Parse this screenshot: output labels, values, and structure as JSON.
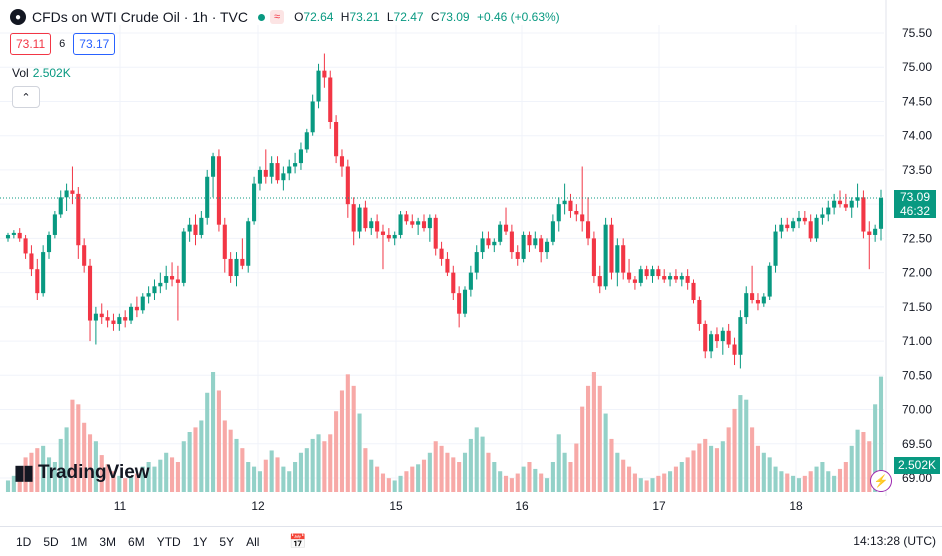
{
  "legend": {
    "symbol_icon": "oil-drop-icon",
    "title": "CFDs on WTI Crude Oil · 1h · TVC",
    "status_icon": "wave-icon",
    "status_glyph": "≈",
    "o_label": "O",
    "o_value": "72.64",
    "h_label": "H",
    "h_value": "73.21",
    "l_label": "L",
    "l_value": "72.47",
    "c_label": "C",
    "c_value": "73.09",
    "change": "+0.46 (+0.63%)"
  },
  "trade": {
    "sell": "73.11",
    "spread": "6",
    "buy": "73.17"
  },
  "volume": {
    "label": "Vol",
    "value": "2.502K"
  },
  "price_tag": {
    "price": "73.09",
    "countdown": "46:32"
  },
  "volume_tag": "2.502K",
  "logo_text": "TradingView",
  "bottom_bar": {
    "ranges": [
      "1D",
      "5D",
      "1M",
      "3M",
      "6M",
      "YTD",
      "1Y",
      "5Y",
      "All"
    ],
    "clock": "14:13:28 (UTC)"
  },
  "colors": {
    "up": "#089981",
    "down": "#f23645",
    "vol_up": "#93d1c8",
    "vol_down": "#f7a9a7"
  },
  "chart_data": {
    "type": "candlestick",
    "title": "CFDs on WTI Crude Oil · 1h · TVC",
    "y_ticks": [
      "75.50",
      "75.00",
      "74.50",
      "74.00",
      "73.50",
      "73.00",
      "72.50",
      "72.00",
      "71.50",
      "71.00",
      "70.50",
      "70.00",
      "69.50",
      "69.00"
    ],
    "x_ticks": [
      "11",
      "12",
      "15",
      "16",
      "17",
      "18"
    ],
    "ylim": [
      68.94,
      75.66
    ],
    "last_price": 73.09,
    "candles": [
      {
        "o": 72.5,
        "h": 72.58,
        "l": 72.45,
        "c": 72.55,
        "v": 0.25
      },
      {
        "o": 72.55,
        "h": 72.62,
        "l": 72.5,
        "c": 72.58,
        "v": 0.35
      },
      {
        "o": 72.58,
        "h": 72.65,
        "l": 72.45,
        "c": 72.5,
        "v": 0.45
      },
      {
        "o": 72.5,
        "h": 72.55,
        "l": 72.2,
        "c": 72.28,
        "v": 0.75
      },
      {
        "o": 72.28,
        "h": 72.4,
        "l": 71.95,
        "c": 72.05,
        "v": 0.85
      },
      {
        "o": 72.05,
        "h": 72.2,
        "l": 71.6,
        "c": 71.7,
        "v": 0.95
      },
      {
        "o": 71.7,
        "h": 72.4,
        "l": 71.65,
        "c": 72.3,
        "v": 1.0
      },
      {
        "o": 72.3,
        "h": 72.6,
        "l": 72.2,
        "c": 72.55,
        "v": 0.75
      },
      {
        "o": 72.55,
        "h": 72.9,
        "l": 72.5,
        "c": 72.85,
        "v": 0.65
      },
      {
        "o": 72.85,
        "h": 73.2,
        "l": 72.8,
        "c": 73.1,
        "v": 1.15
      },
      {
        "o": 73.1,
        "h": 73.3,
        "l": 72.9,
        "c": 73.2,
        "v": 1.4
      },
      {
        "o": 73.2,
        "h": 73.55,
        "l": 73.0,
        "c": 73.15,
        "v": 2.0
      },
      {
        "o": 73.15,
        "h": 73.25,
        "l": 72.2,
        "c": 72.4,
        "v": 1.9
      },
      {
        "o": 72.4,
        "h": 72.5,
        "l": 72.0,
        "c": 72.1,
        "v": 1.5
      },
      {
        "o": 72.1,
        "h": 72.2,
        "l": 71.0,
        "c": 71.3,
        "v": 1.25
      },
      {
        "o": 71.3,
        "h": 71.5,
        "l": 70.95,
        "c": 71.4,
        "v": 1.1
      },
      {
        "o": 71.4,
        "h": 71.55,
        "l": 71.25,
        "c": 71.35,
        "v": 0.8
      },
      {
        "o": 71.35,
        "h": 71.45,
        "l": 71.2,
        "c": 71.3,
        "v": 0.6
      },
      {
        "o": 71.3,
        "h": 71.4,
        "l": 71.15,
        "c": 71.25,
        "v": 0.45
      },
      {
        "o": 71.25,
        "h": 71.4,
        "l": 71.15,
        "c": 71.35,
        "v": 0.35
      },
      {
        "o": 71.35,
        "h": 71.45,
        "l": 71.2,
        "c": 71.3,
        "v": 0.3
      },
      {
        "o": 71.3,
        "h": 71.55,
        "l": 71.25,
        "c": 71.5,
        "v": 0.35
      },
      {
        "o": 71.5,
        "h": 71.65,
        "l": 71.35,
        "c": 71.45,
        "v": 0.4
      },
      {
        "o": 71.45,
        "h": 71.7,
        "l": 71.4,
        "c": 71.65,
        "v": 0.55
      },
      {
        "o": 71.65,
        "h": 71.8,
        "l": 71.55,
        "c": 71.7,
        "v": 0.65
      },
      {
        "o": 71.7,
        "h": 71.9,
        "l": 71.6,
        "c": 71.8,
        "v": 0.55
      },
      {
        "o": 71.8,
        "h": 72.0,
        "l": 71.7,
        "c": 71.85,
        "v": 0.7
      },
      {
        "o": 71.85,
        "h": 72.1,
        "l": 71.75,
        "c": 71.95,
        "v": 0.85
      },
      {
        "o": 71.95,
        "h": 72.15,
        "l": 71.8,
        "c": 71.9,
        "v": 0.75
      },
      {
        "o": 71.9,
        "h": 72.1,
        "l": 71.3,
        "c": 71.85,
        "v": 0.65
      },
      {
        "o": 71.85,
        "h": 72.65,
        "l": 71.8,
        "c": 72.6,
        "v": 1.1
      },
      {
        "o": 72.6,
        "h": 72.8,
        "l": 72.45,
        "c": 72.7,
        "v": 1.3
      },
      {
        "o": 72.7,
        "h": 72.85,
        "l": 72.4,
        "c": 72.55,
        "v": 1.4
      },
      {
        "o": 72.55,
        "h": 72.9,
        "l": 72.5,
        "c": 72.8,
        "v": 1.55
      },
      {
        "o": 72.8,
        "h": 73.5,
        "l": 72.7,
        "c": 73.4,
        "v": 2.15
      },
      {
        "o": 73.4,
        "h": 73.75,
        "l": 73.1,
        "c": 73.7,
        "v": 2.6
      },
      {
        "o": 73.7,
        "h": 73.8,
        "l": 72.6,
        "c": 72.7,
        "v": 2.2
      },
      {
        "o": 72.7,
        "h": 72.8,
        "l": 72.0,
        "c": 72.2,
        "v": 1.55
      },
      {
        "o": 72.2,
        "h": 72.3,
        "l": 71.85,
        "c": 71.95,
        "v": 1.35
      },
      {
        "o": 71.95,
        "h": 72.3,
        "l": 71.8,
        "c": 72.2,
        "v": 1.15
      },
      {
        "o": 72.2,
        "h": 72.5,
        "l": 72.05,
        "c": 72.1,
        "v": 0.95
      },
      {
        "o": 72.1,
        "h": 72.8,
        "l": 72.0,
        "c": 72.75,
        "v": 0.65
      },
      {
        "o": 72.75,
        "h": 73.4,
        "l": 72.7,
        "c": 73.3,
        "v": 0.55
      },
      {
        "o": 73.3,
        "h": 73.55,
        "l": 73.2,
        "c": 73.5,
        "v": 0.45
      },
      {
        "o": 73.5,
        "h": 73.8,
        "l": 73.3,
        "c": 73.4,
        "v": 0.7
      },
      {
        "o": 73.4,
        "h": 73.7,
        "l": 73.3,
        "c": 73.6,
        "v": 0.9
      },
      {
        "o": 73.6,
        "h": 73.7,
        "l": 73.3,
        "c": 73.35,
        "v": 0.75
      },
      {
        "o": 73.35,
        "h": 73.55,
        "l": 73.2,
        "c": 73.45,
        "v": 0.55
      },
      {
        "o": 73.45,
        "h": 73.65,
        "l": 73.35,
        "c": 73.55,
        "v": 0.45
      },
      {
        "o": 73.55,
        "h": 73.75,
        "l": 73.45,
        "c": 73.6,
        "v": 0.65
      },
      {
        "o": 73.6,
        "h": 73.9,
        "l": 73.5,
        "c": 73.8,
        "v": 0.85
      },
      {
        "o": 73.8,
        "h": 74.1,
        "l": 73.75,
        "c": 74.05,
        "v": 0.95
      },
      {
        "o": 74.05,
        "h": 74.6,
        "l": 74.0,
        "c": 74.5,
        "v": 1.15
      },
      {
        "o": 74.5,
        "h": 75.05,
        "l": 74.4,
        "c": 74.95,
        "v": 1.25
      },
      {
        "o": 74.95,
        "h": 75.2,
        "l": 74.7,
        "c": 74.85,
        "v": 1.1
      },
      {
        "o": 74.85,
        "h": 74.95,
        "l": 74.1,
        "c": 74.2,
        "v": 1.25
      },
      {
        "o": 74.2,
        "h": 74.3,
        "l": 73.6,
        "c": 73.7,
        "v": 1.75
      },
      {
        "o": 73.7,
        "h": 73.8,
        "l": 73.4,
        "c": 73.55,
        "v": 2.2
      },
      {
        "o": 73.55,
        "h": 73.65,
        "l": 72.8,
        "c": 73.0,
        "v": 2.55
      },
      {
        "o": 73.0,
        "h": 73.1,
        "l": 72.4,
        "c": 72.6,
        "v": 2.3
      },
      {
        "o": 72.6,
        "h": 73.0,
        "l": 72.5,
        "c": 72.95,
        "v": 1.7
      },
      {
        "o": 72.95,
        "h": 73.05,
        "l": 72.6,
        "c": 72.65,
        "v": 0.95
      },
      {
        "o": 72.65,
        "h": 72.8,
        "l": 72.55,
        "c": 72.75,
        "v": 0.7
      },
      {
        "o": 72.75,
        "h": 72.85,
        "l": 72.5,
        "c": 72.6,
        "v": 0.55
      },
      {
        "o": 72.6,
        "h": 72.7,
        "l": 72.05,
        "c": 72.55,
        "v": 0.4
      },
      {
        "o": 72.55,
        "h": 72.65,
        "l": 72.45,
        "c": 72.5,
        "v": 0.3
      },
      {
        "o": 72.5,
        "h": 72.6,
        "l": 72.4,
        "c": 72.55,
        "v": 0.25
      },
      {
        "o": 72.55,
        "h": 72.9,
        "l": 72.5,
        "c": 72.85,
        "v": 0.35
      },
      {
        "o": 72.85,
        "h": 72.9,
        "l": 72.7,
        "c": 72.75,
        "v": 0.45
      },
      {
        "o": 72.75,
        "h": 72.85,
        "l": 72.65,
        "c": 72.7,
        "v": 0.55
      },
      {
        "o": 72.7,
        "h": 72.8,
        "l": 72.55,
        "c": 72.75,
        "v": 0.6
      },
      {
        "o": 72.75,
        "h": 72.85,
        "l": 72.6,
        "c": 72.65,
        "v": 0.7
      },
      {
        "o": 72.65,
        "h": 72.85,
        "l": 72.45,
        "c": 72.8,
        "v": 0.85
      },
      {
        "o": 72.8,
        "h": 72.85,
        "l": 72.25,
        "c": 72.35,
        "v": 1.1
      },
      {
        "o": 72.35,
        "h": 72.45,
        "l": 72.1,
        "c": 72.2,
        "v": 1.0
      },
      {
        "o": 72.2,
        "h": 72.3,
        "l": 71.95,
        "c": 72.0,
        "v": 0.85
      },
      {
        "o": 72.0,
        "h": 72.1,
        "l": 71.6,
        "c": 71.7,
        "v": 0.75
      },
      {
        "o": 71.7,
        "h": 71.8,
        "l": 71.2,
        "c": 71.4,
        "v": 0.65
      },
      {
        "o": 71.4,
        "h": 71.8,
        "l": 71.35,
        "c": 71.75,
        "v": 0.85
      },
      {
        "o": 71.75,
        "h": 72.1,
        "l": 71.65,
        "c": 72.0,
        "v": 1.15
      },
      {
        "o": 72.0,
        "h": 72.4,
        "l": 71.9,
        "c": 72.3,
        "v": 1.4
      },
      {
        "o": 72.3,
        "h": 72.6,
        "l": 72.2,
        "c": 72.5,
        "v": 1.2
      },
      {
        "o": 72.5,
        "h": 72.6,
        "l": 72.35,
        "c": 72.4,
        "v": 0.85
      },
      {
        "o": 72.4,
        "h": 72.5,
        "l": 72.3,
        "c": 72.45,
        "v": 0.65
      },
      {
        "o": 72.45,
        "h": 72.75,
        "l": 72.4,
        "c": 72.7,
        "v": 0.45
      },
      {
        "o": 72.7,
        "h": 72.95,
        "l": 72.55,
        "c": 72.6,
        "v": 0.35
      },
      {
        "o": 72.6,
        "h": 72.7,
        "l": 72.2,
        "c": 72.3,
        "v": 0.3
      },
      {
        "o": 72.3,
        "h": 72.4,
        "l": 72.1,
        "c": 72.2,
        "v": 0.4
      },
      {
        "o": 72.2,
        "h": 72.6,
        "l": 72.15,
        "c": 72.55,
        "v": 0.55
      },
      {
        "o": 72.55,
        "h": 72.6,
        "l": 72.3,
        "c": 72.4,
        "v": 0.65
      },
      {
        "o": 72.4,
        "h": 72.6,
        "l": 72.35,
        "c": 72.5,
        "v": 0.5
      },
      {
        "o": 72.5,
        "h": 72.55,
        "l": 72.15,
        "c": 72.3,
        "v": 0.4
      },
      {
        "o": 72.3,
        "h": 72.5,
        "l": 72.2,
        "c": 72.45,
        "v": 0.3
      },
      {
        "o": 72.45,
        "h": 72.85,
        "l": 72.4,
        "c": 72.75,
        "v": 0.65
      },
      {
        "o": 72.75,
        "h": 73.1,
        "l": 72.6,
        "c": 73.0,
        "v": 1.25
      },
      {
        "o": 73.0,
        "h": 73.3,
        "l": 72.85,
        "c": 73.05,
        "v": 0.85
      },
      {
        "o": 73.05,
        "h": 73.15,
        "l": 72.8,
        "c": 72.9,
        "v": 0.65
      },
      {
        "o": 72.9,
        "h": 73.0,
        "l": 72.75,
        "c": 72.85,
        "v": 1.05
      },
      {
        "o": 72.85,
        "h": 73.55,
        "l": 72.6,
        "c": 72.75,
        "v": 1.85
      },
      {
        "o": 72.75,
        "h": 73.1,
        "l": 72.4,
        "c": 72.5,
        "v": 2.3
      },
      {
        "o": 72.5,
        "h": 72.6,
        "l": 71.85,
        "c": 71.95,
        "v": 2.6
      },
      {
        "o": 71.95,
        "h": 72.1,
        "l": 71.7,
        "c": 71.8,
        "v": 2.3
      },
      {
        "o": 71.8,
        "h": 72.8,
        "l": 71.75,
        "c": 72.7,
        "v": 1.7
      },
      {
        "o": 72.7,
        "h": 72.8,
        "l": 71.9,
        "c": 72.0,
        "v": 1.15
      },
      {
        "o": 72.0,
        "h": 72.5,
        "l": 71.8,
        "c": 72.4,
        "v": 0.85
      },
      {
        "o": 72.4,
        "h": 72.5,
        "l": 71.9,
        "c": 72.0,
        "v": 0.7
      },
      {
        "o": 72.0,
        "h": 72.2,
        "l": 71.85,
        "c": 71.9,
        "v": 0.55
      },
      {
        "o": 71.9,
        "h": 71.95,
        "l": 71.75,
        "c": 71.85,
        "v": 0.4
      },
      {
        "o": 71.85,
        "h": 72.1,
        "l": 71.8,
        "c": 72.05,
        "v": 0.3
      },
      {
        "o": 72.05,
        "h": 72.1,
        "l": 71.9,
        "c": 71.95,
        "v": 0.25
      },
      {
        "o": 71.95,
        "h": 72.1,
        "l": 71.85,
        "c": 72.05,
        "v": 0.3
      },
      {
        "o": 72.05,
        "h": 72.1,
        "l": 71.9,
        "c": 71.95,
        "v": 0.35
      },
      {
        "o": 71.95,
        "h": 72.05,
        "l": 71.85,
        "c": 71.9,
        "v": 0.4
      },
      {
        "o": 71.9,
        "h": 72.0,
        "l": 71.8,
        "c": 71.95,
        "v": 0.45
      },
      {
        "o": 71.95,
        "h": 72.05,
        "l": 71.85,
        "c": 71.9,
        "v": 0.55
      },
      {
        "o": 71.9,
        "h": 72.0,
        "l": 71.8,
        "c": 71.95,
        "v": 0.65
      },
      {
        "o": 71.95,
        "h": 72.05,
        "l": 71.75,
        "c": 71.85,
        "v": 0.75
      },
      {
        "o": 71.85,
        "h": 71.9,
        "l": 71.55,
        "c": 71.6,
        "v": 0.9
      },
      {
        "o": 71.6,
        "h": 71.65,
        "l": 71.15,
        "c": 71.25,
        "v": 1.05
      },
      {
        "o": 71.25,
        "h": 71.3,
        "l": 70.75,
        "c": 70.85,
        "v": 1.15
      },
      {
        "o": 70.85,
        "h": 71.15,
        "l": 70.75,
        "c": 71.1,
        "v": 1.0
      },
      {
        "o": 71.1,
        "h": 71.2,
        "l": 70.9,
        "c": 71.0,
        "v": 0.95
      },
      {
        "o": 71.0,
        "h": 71.2,
        "l": 70.8,
        "c": 71.15,
        "v": 1.1
      },
      {
        "o": 71.15,
        "h": 71.25,
        "l": 70.9,
        "c": 70.95,
        "v": 1.4
      },
      {
        "o": 70.95,
        "h": 71.05,
        "l": 70.65,
        "c": 70.8,
        "v": 1.8
      },
      {
        "o": 70.8,
        "h": 71.45,
        "l": 70.6,
        "c": 71.35,
        "v": 2.1
      },
      {
        "o": 71.35,
        "h": 71.8,
        "l": 71.25,
        "c": 71.7,
        "v": 2.0
      },
      {
        "o": 71.7,
        "h": 72.1,
        "l": 71.55,
        "c": 71.6,
        "v": 1.4
      },
      {
        "o": 71.6,
        "h": 71.7,
        "l": 71.45,
        "c": 71.55,
        "v": 1.0
      },
      {
        "o": 71.55,
        "h": 71.7,
        "l": 71.5,
        "c": 71.65,
        "v": 0.85
      },
      {
        "o": 71.65,
        "h": 72.15,
        "l": 71.6,
        "c": 72.1,
        "v": 0.75
      },
      {
        "o": 72.1,
        "h": 72.7,
        "l": 72.0,
        "c": 72.6,
        "v": 0.55
      },
      {
        "o": 72.6,
        "h": 72.8,
        "l": 72.5,
        "c": 72.7,
        "v": 0.45
      },
      {
        "o": 72.7,
        "h": 72.8,
        "l": 72.6,
        "c": 72.65,
        "v": 0.4
      },
      {
        "o": 72.65,
        "h": 72.8,
        "l": 72.6,
        "c": 72.75,
        "v": 0.35
      },
      {
        "o": 72.75,
        "h": 72.9,
        "l": 72.65,
        "c": 72.8,
        "v": 0.3
      },
      {
        "o": 72.8,
        "h": 72.9,
        "l": 72.7,
        "c": 72.75,
        "v": 0.35
      },
      {
        "o": 72.75,
        "h": 72.85,
        "l": 72.45,
        "c": 72.5,
        "v": 0.45
      },
      {
        "o": 72.5,
        "h": 72.85,
        "l": 72.45,
        "c": 72.8,
        "v": 0.55
      },
      {
        "o": 72.8,
        "h": 72.95,
        "l": 72.7,
        "c": 72.85,
        "v": 0.65
      },
      {
        "o": 72.85,
        "h": 73.05,
        "l": 72.75,
        "c": 72.95,
        "v": 0.45
      },
      {
        "o": 72.95,
        "h": 73.15,
        "l": 72.85,
        "c": 73.05,
        "v": 0.35
      },
      {
        "o": 73.05,
        "h": 73.2,
        "l": 72.95,
        "c": 73.0,
        "v": 0.5
      },
      {
        "o": 73.0,
        "h": 73.15,
        "l": 72.9,
        "c": 72.95,
        "v": 0.65
      },
      {
        "o": 72.95,
        "h": 73.1,
        "l": 72.8,
        "c": 73.05,
        "v": 1.0
      },
      {
        "o": 73.05,
        "h": 73.3,
        "l": 72.95,
        "c": 73.1,
        "v": 1.35
      },
      {
        "o": 73.1,
        "h": 73.2,
        "l": 72.5,
        "c": 72.6,
        "v": 1.3
      },
      {
        "o": 72.6,
        "h": 72.75,
        "l": 72.05,
        "c": 72.55,
        "v": 1.1
      },
      {
        "o": 72.55,
        "h": 72.7,
        "l": 72.45,
        "c": 72.64,
        "v": 1.9
      },
      {
        "o": 72.64,
        "h": 73.21,
        "l": 72.47,
        "c": 73.09,
        "v": 2.5
      }
    ]
  }
}
